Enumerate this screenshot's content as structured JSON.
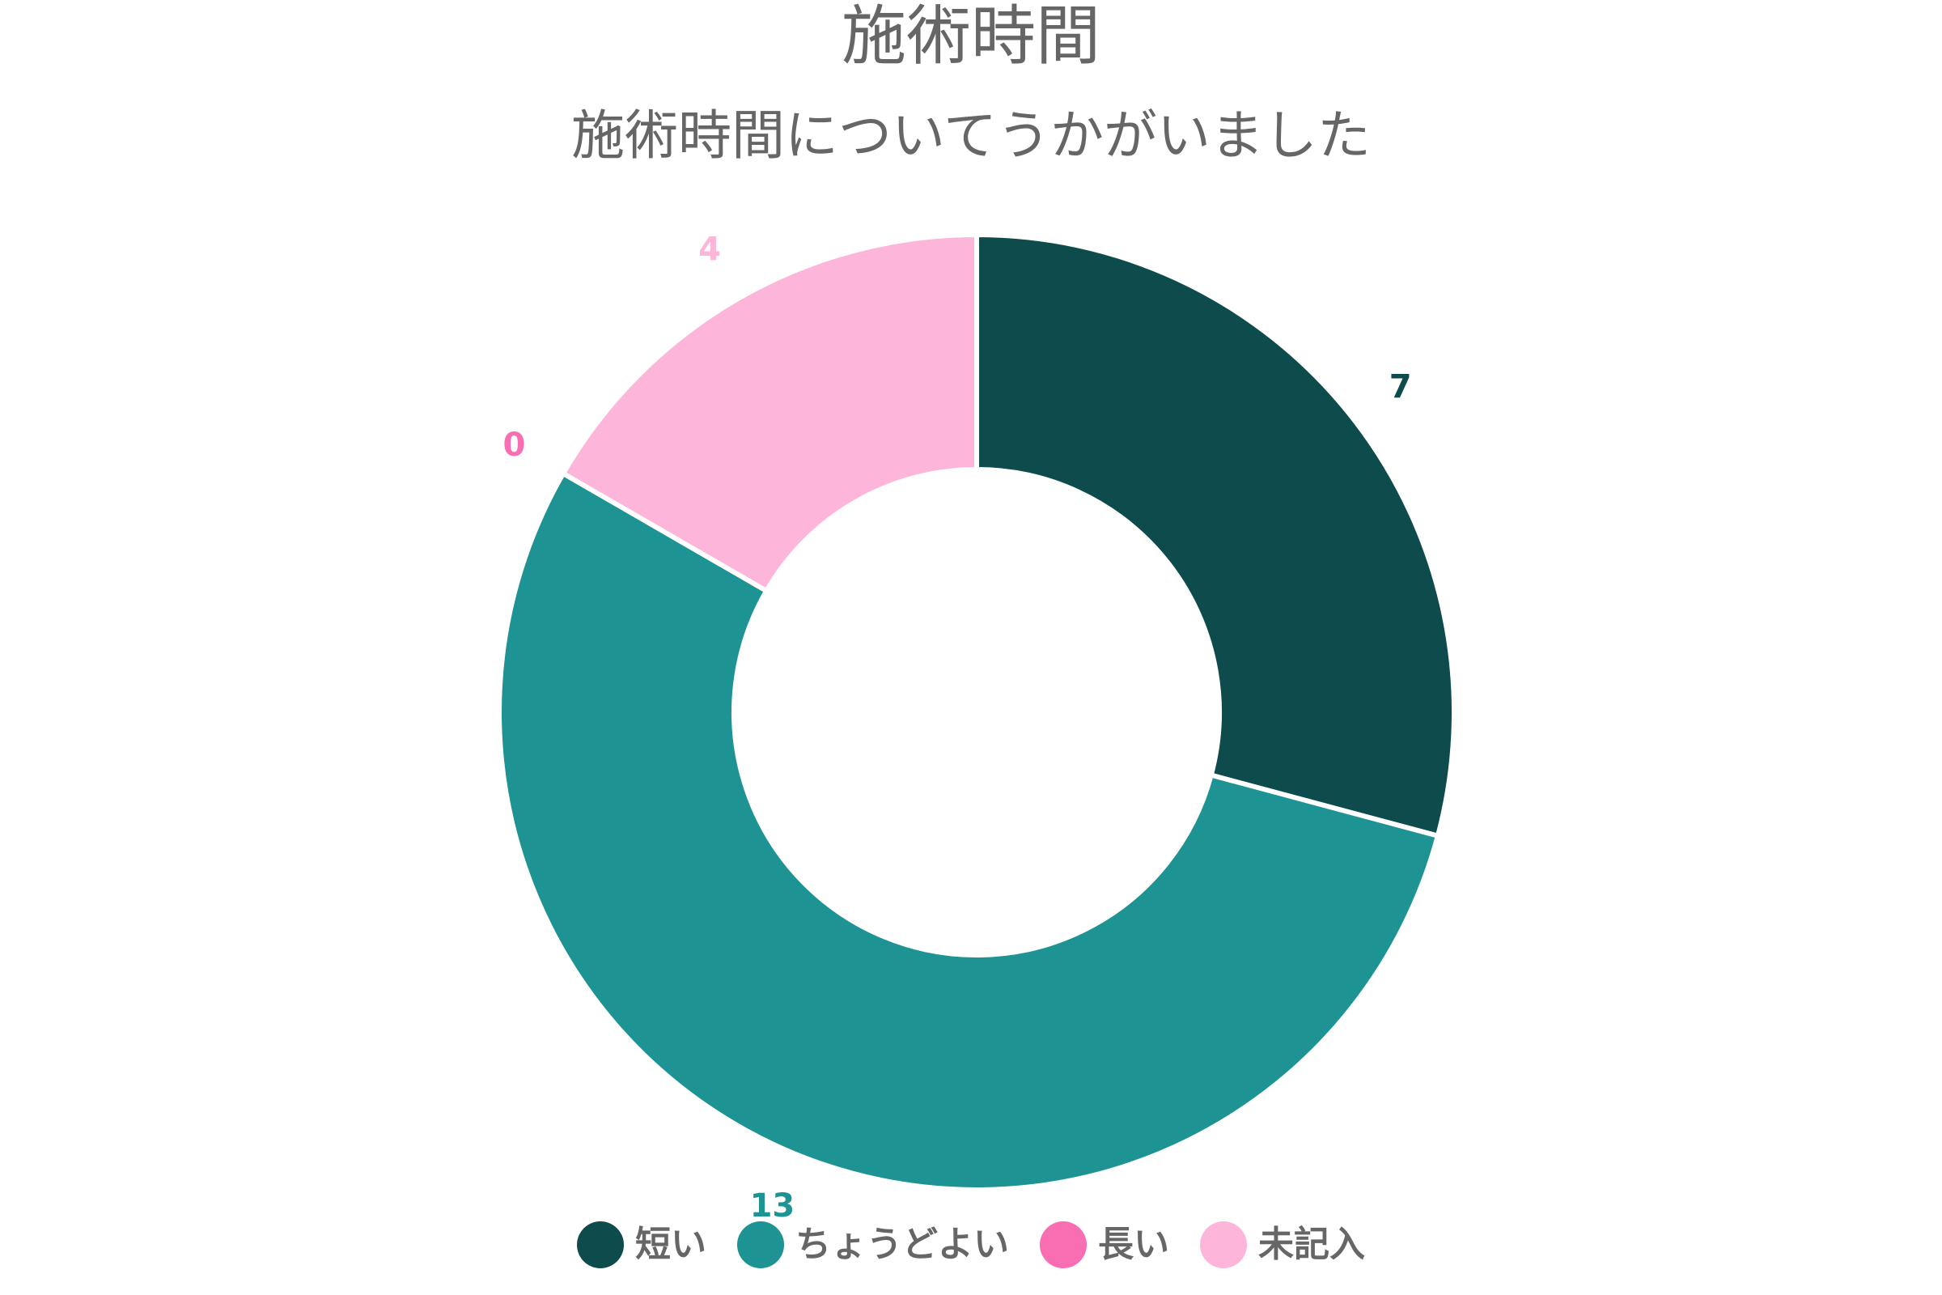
{
  "chart_data": {
    "type": "pie",
    "variant": "donut",
    "title": "施術時間",
    "subtitle": "施術時間についてうかがいました",
    "categories": [
      "短い",
      "ちょうどよい",
      "長い",
      "未記入"
    ],
    "values": [
      7,
      13,
      0,
      4
    ],
    "colors": [
      "#0d4b4c",
      "#1e9393",
      "#f96eb3",
      "#fdb6da"
    ],
    "data_labels": [
      "7",
      "13",
      "0",
      "4"
    ],
    "legend_position": "bottom"
  }
}
